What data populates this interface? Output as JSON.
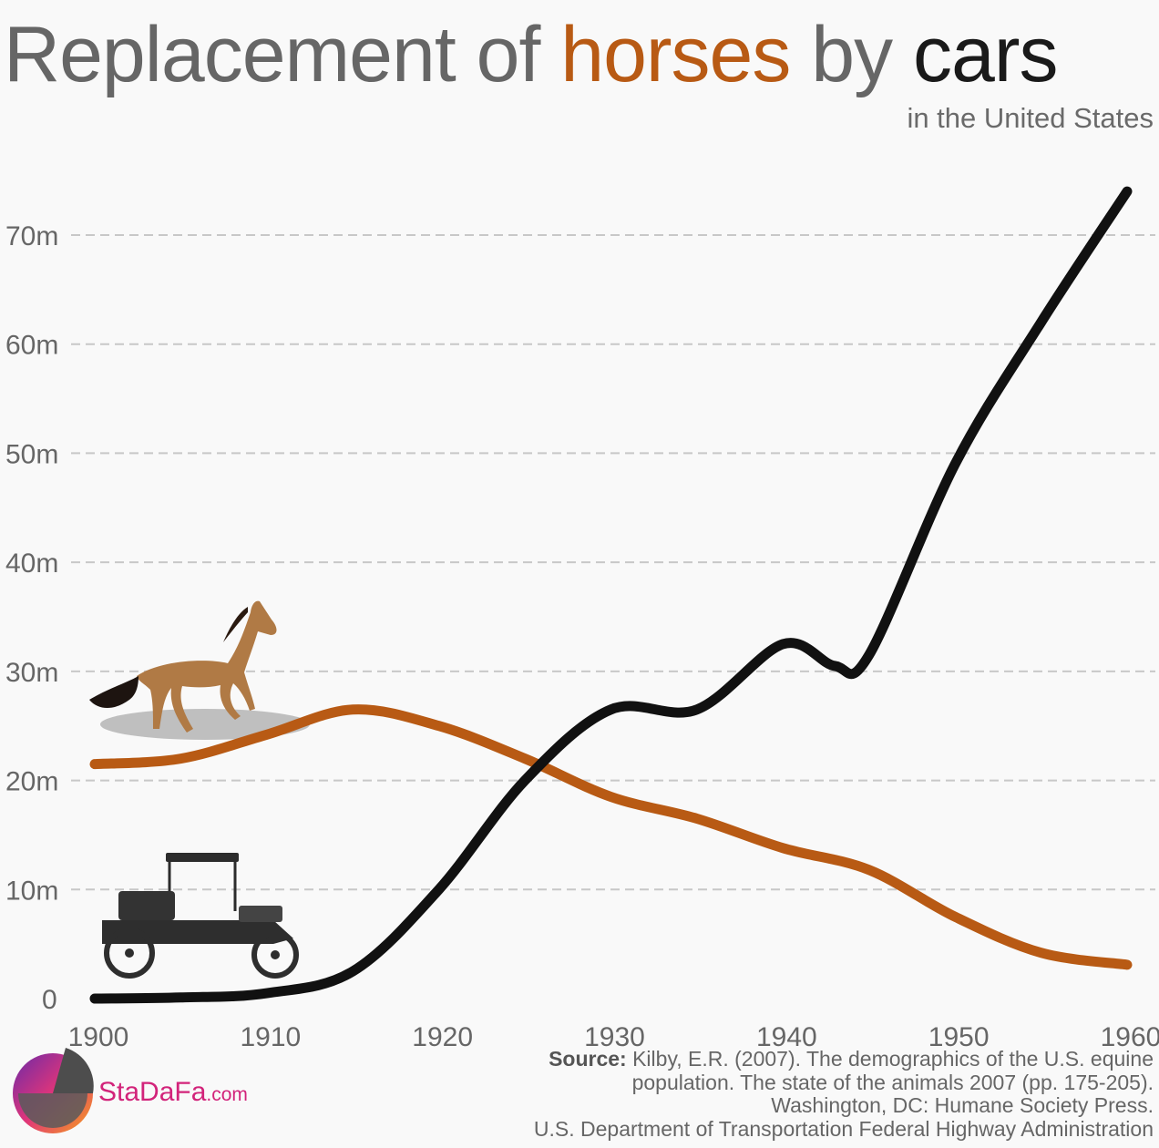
{
  "title": {
    "part1": "Replacement of ",
    "part2": "horses",
    "part3": " by ",
    "part4": "cars"
  },
  "subtitle": "in the United States",
  "colors": {
    "horses": "#b85a14",
    "cars": "#111111",
    "title_gray": "#666666",
    "grid": "#c8c8c8",
    "axis_text": "#666666",
    "background": "#f9f9f9"
  },
  "chart_data": {
    "type": "line",
    "title": "Replacement of horses by cars",
    "subtitle": "in the United States",
    "xlabel": "",
    "ylabel": "",
    "xlim": [
      1900,
      1960
    ],
    "ylim": [
      0,
      70
    ],
    "x_ticks": [
      1900,
      1910,
      1920,
      1930,
      1940,
      1950,
      1960
    ],
    "x_tick_labels": [
      "1900",
      "1910",
      "1920",
      "1930",
      "1940",
      "1950",
      "1960"
    ],
    "y_ticks": [
      0,
      10,
      20,
      30,
      40,
      50,
      60,
      70
    ],
    "y_tick_labels": [
      "0",
      "10m",
      "20m",
      "30m",
      "40m",
      "50m",
      "60m",
      "70m"
    ],
    "grid": "horizontal-dashed",
    "legend": "icons (horse, car) at left",
    "series": [
      {
        "name": "Horses",
        "points": [
          [
            1900,
            21.5
          ],
          [
            1905,
            22.0
          ],
          [
            1910,
            24.2
          ],
          [
            1915,
            26.5
          ],
          [
            1920,
            25.0
          ],
          [
            1925,
            22.0
          ],
          [
            1930,
            18.5
          ],
          [
            1935,
            16.5
          ],
          [
            1940,
            13.8
          ],
          [
            1945,
            11.8
          ],
          [
            1950,
            7.5
          ],
          [
            1955,
            4.2
          ],
          [
            1960,
            3.1
          ]
        ]
      },
      {
        "name": "Cars",
        "points": [
          [
            1900,
            0.0
          ],
          [
            1905,
            0.1
          ],
          [
            1910,
            0.5
          ],
          [
            1915,
            2.5
          ],
          [
            1920,
            10.0
          ],
          [
            1925,
            20.0
          ],
          [
            1930,
            26.5
          ],
          [
            1935,
            26.5
          ],
          [
            1940,
            32.5
          ],
          [
            1943,
            30.5
          ],
          [
            1945,
            31.5
          ],
          [
            1950,
            49.0
          ],
          [
            1955,
            62.0
          ],
          [
            1960,
            74.0
          ]
        ]
      }
    ]
  },
  "source": {
    "label": "Source:",
    "lines": [
      " Kilby, E.R. (2007). The demographics of the U.S. equine",
      "population. The state of the animals 2007 (pp. 175-205).",
      "Washington, DC: Humane Society Press.",
      "U.S. Department of Transportation Federal Highway Administration"
    ]
  },
  "logo": {
    "name": "StaDaFa",
    "suffix": ".com"
  }
}
